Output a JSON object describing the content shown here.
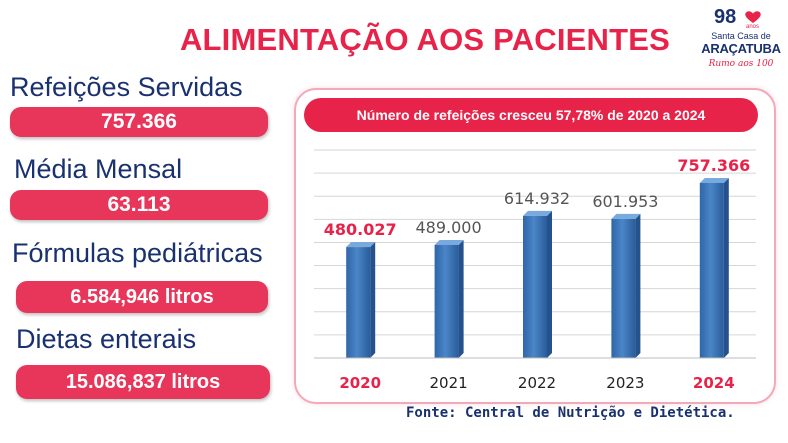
{
  "title": "ALIMENTAÇÃO AOS PACIENTES",
  "logo": {
    "anniversary": "98",
    "anos": "anos",
    "line1": "Santa Casa de",
    "line2": "ARAÇATUBA",
    "signature": "Rumo aos 100"
  },
  "stats": [
    {
      "label": "Refeições Servidas",
      "value": "757.366"
    },
    {
      "label": "Média Mensal",
      "value": "63.113"
    },
    {
      "label": "Fórmulas pediátricas",
      "value": "6.584,946 litros"
    },
    {
      "label": "Dietas enterais",
      "value": "15.086,837 litros"
    }
  ],
  "headline": "Número de refeições cresceu 57,78% de 2020 a 2024",
  "source": "Fonte: Central de Nutrição e Dietética.",
  "colors": {
    "accent": "#e8234a",
    "navy": "#1a3170",
    "bar": "#4a86c8",
    "highlight_label": "#e8234a",
    "normal_label": "#555555"
  },
  "chart_data": {
    "type": "bar",
    "categories": [
      "2020",
      "2021",
      "2022",
      "2023",
      "2024"
    ],
    "values": [
      480027,
      489000,
      614932,
      601953,
      757366
    ],
    "value_labels": [
      "480.027",
      "489.000",
      "614.932",
      "601.953",
      "757.366"
    ],
    "highlighted": [
      true,
      false,
      false,
      false,
      true
    ],
    "ylim": [
      0,
      900000
    ],
    "grid": true,
    "title": "",
    "xlabel": "",
    "ylabel": ""
  }
}
